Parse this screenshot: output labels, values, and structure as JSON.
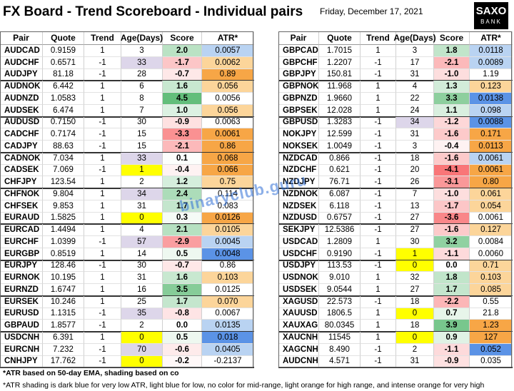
{
  "header": {
    "title": "FX Board - Trend Scoreboard - Individual pairs",
    "date": "Friday, December 17, 2021",
    "logo_top": "SAXO",
    "logo_bottom": "BANK"
  },
  "columns": [
    "Pair",
    "Quote",
    "Trend",
    "Age(Days)",
    "Score",
    "ATR*"
  ],
  "tables": [
    {
      "groups": [
        [
          {
            "pair": "AUDCAD",
            "quote": "0.9159",
            "trend": "1",
            "age": "3",
            "score": "2.0",
            "atr": "0.0057",
            "atr_shade": "light-blue"
          },
          {
            "pair": "AUDCHF",
            "quote": "0.6571",
            "trend": "-1",
            "age": "33",
            "score": "-1.7",
            "atr": "0.0062",
            "atr_shade": "light-orange"
          },
          {
            "pair": "AUDJPY",
            "quote": "81.18",
            "trend": "-1",
            "age": "28",
            "score": "-0.7",
            "atr": "0.89",
            "atr_shade": "orange"
          }
        ],
        [
          {
            "pair": "AUDNOK",
            "quote": "6.442",
            "trend": "1",
            "age": "6",
            "score": "1.6",
            "atr": "0.056",
            "atr_shade": "light-orange"
          },
          {
            "pair": "AUDNZD",
            "quote": "1.0583",
            "trend": "1",
            "age": "8",
            "score": "4.5",
            "atr": "0.0056",
            "atr_shade": "none"
          },
          {
            "pair": "AUDSEK",
            "quote": "6.474",
            "trend": "1",
            "age": "7",
            "score": "1.0",
            "atr": "0.056",
            "atr_shade": "light-orange"
          }
        ],
        [
          {
            "pair": "AUDUSD",
            "quote": "0.7150",
            "trend": "-1",
            "age": "30",
            "score": "-0.9",
            "atr": "0.0063",
            "atr_shade": "none"
          },
          {
            "pair": "CADCHF",
            "quote": "0.7174",
            "trend": "-1",
            "age": "15",
            "score": "-3.3",
            "atr": "0.0061",
            "atr_shade": "orange"
          },
          {
            "pair": "CADJPY",
            "quote": "88.63",
            "trend": "-1",
            "age": "15",
            "score": "-2.1",
            "atr": "0.86",
            "atr_shade": "orange"
          }
        ],
        [
          {
            "pair": "CADNOK",
            "quote": "7.034",
            "trend": "1",
            "age": "33",
            "score": "0.1",
            "atr": "0.068",
            "atr_shade": "orange"
          },
          {
            "pair": "CADSEK",
            "quote": "7.069",
            "trend": "-1",
            "age": "1",
            "score": "-0.4",
            "atr": "0.066",
            "atr_shade": "orange"
          },
          {
            "pair": "CHFJPY",
            "quote": "123.54",
            "trend": "1",
            "age": "2",
            "score": "1.2",
            "atr": "0.75",
            "atr_shade": "light-orange"
          }
        ],
        [
          {
            "pair": "CHFNOK",
            "quote": "9.804",
            "trend": "1",
            "age": "34",
            "score": "2.4",
            "atr": "0.114",
            "atr_shade": "none"
          },
          {
            "pair": "CHFSEK",
            "quote": "9.853",
            "trend": "1",
            "age": "31",
            "score": "1.7",
            "atr": "0.083",
            "atr_shade": "none"
          },
          {
            "pair": "EURAUD",
            "quote": "1.5825",
            "trend": "1",
            "age": "0",
            "score": "0.3",
            "atr": "0.0126",
            "atr_shade": "orange"
          }
        ],
        [
          {
            "pair": "EURCAD",
            "quote": "1.4494",
            "trend": "1",
            "age": "4",
            "score": "2.1",
            "atr": "0.0105",
            "atr_shade": "light-orange"
          },
          {
            "pair": "EURCHF",
            "quote": "1.0399",
            "trend": "-1",
            "age": "57",
            "score": "-2.9",
            "atr": "0.0045",
            "atr_shade": "light-blue"
          },
          {
            "pair": "EURGBP",
            "quote": "0.8519",
            "trend": "1",
            "age": "14",
            "score": "0.5",
            "atr": "0.0048",
            "atr_shade": "dark-blue"
          }
        ],
        [
          {
            "pair": "EURJPY",
            "quote": "128.46",
            "trend": "-1",
            "age": "30",
            "score": "-0.7",
            "atr": "0.86",
            "atr_shade": "none"
          },
          {
            "pair": "EURNOK",
            "quote": "10.195",
            "trend": "1",
            "age": "31",
            "score": "1.6",
            "atr": "0.103",
            "atr_shade": "light-orange"
          },
          {
            "pair": "EURNZD",
            "quote": "1.6747",
            "trend": "1",
            "age": "16",
            "score": "3.5",
            "atr": "0.0125",
            "atr_shade": "none"
          }
        ],
        [
          {
            "pair": "EURSEK",
            "quote": "10.246",
            "trend": "1",
            "age": "25",
            "score": "1.7",
            "atr": "0.070",
            "atr_shade": "light-orange"
          },
          {
            "pair": "EURUSD",
            "quote": "1.1315",
            "trend": "-1",
            "age": "35",
            "score": "-0.8",
            "atr": "0.0067",
            "atr_shade": "none"
          },
          {
            "pair": "GBPAUD",
            "quote": "1.8577",
            "trend": "-1",
            "age": "2",
            "score": "0.0",
            "atr": "0.0135",
            "atr_shade": "light-blue"
          }
        ],
        [
          {
            "pair": "USDCNH",
            "quote": "6.391",
            "trend": "1",
            "age": "0",
            "score": "0.5",
            "atr": "0.018",
            "atr_shade": "dark-blue"
          },
          {
            "pair": "EURCNH",
            "quote": "7.232",
            "trend": "-1",
            "age": "70",
            "score": "-0.6",
            "atr": "0.0405",
            "atr_shade": "light-blue"
          },
          {
            "pair": "CNHJPY",
            "quote": "17.762",
            "trend": "-1",
            "age": "0",
            "score": "-0.2",
            "atr": "-0.2137",
            "atr_shade": "none"
          }
        ]
      ]
    },
    {
      "groups": [
        [
          {
            "pair": "GBPCAD",
            "quote": "1.7015",
            "trend": "1",
            "age": "3",
            "score": "1.8",
            "atr": "0.0118",
            "atr_shade": "light-blue"
          },
          {
            "pair": "GBPCHF",
            "quote": "1.2207",
            "trend": "-1",
            "age": "17",
            "score": "-2.1",
            "atr": "0.0089",
            "atr_shade": "light-blue"
          },
          {
            "pair": "GBPJPY",
            "quote": "150.81",
            "trend": "-1",
            "age": "31",
            "score": "-1.0",
            "atr": "1.19",
            "atr_shade": "none"
          }
        ],
        [
          {
            "pair": "GBPNOK",
            "quote": "11.968",
            "trend": "1",
            "age": "4",
            "score": "1.3",
            "atr": "0.123",
            "atr_shade": "light-orange"
          },
          {
            "pair": "GBPNZD",
            "quote": "1.9660",
            "trend": "1",
            "age": "22",
            "score": "3.3",
            "atr": "0.0138",
            "atr_shade": "dark-blue"
          },
          {
            "pair": "GBPSEK",
            "quote": "12.028",
            "trend": "1",
            "age": "24",
            "score": "1.1",
            "atr": "0.098",
            "atr_shade": "light-blue"
          }
        ],
        [
          {
            "pair": "GBPUSD",
            "quote": "1.3283",
            "trend": "-1",
            "age": "34",
            "score": "-1.2",
            "atr": "0.0088",
            "atr_shade": "dark-blue"
          },
          {
            "pair": "NOKJPY",
            "quote": "12.599",
            "trend": "-1",
            "age": "31",
            "score": "-1.6",
            "atr": "0.171",
            "atr_shade": "orange"
          },
          {
            "pair": "NOKSEK",
            "quote": "1.0049",
            "trend": "-1",
            "age": "3",
            "score": "-0.4",
            "atr": "0.0113",
            "atr_shade": "orange"
          }
        ],
        [
          {
            "pair": "NZDCAD",
            "quote": "0.866",
            "trend": "-1",
            "age": "18",
            "score": "-1.6",
            "atr": "0.0061",
            "atr_shade": "light-blue"
          },
          {
            "pair": "NZDCHF",
            "quote": "0.621",
            "trend": "-1",
            "age": "20",
            "score": "-4.1",
            "atr": "0.0061",
            "atr_shade": "orange"
          },
          {
            "pair": "NZDJPY",
            "quote": "76.71",
            "trend": "-1",
            "age": "26",
            "score": "-3.1",
            "atr": "0.80",
            "atr_shade": "orange"
          }
        ],
        [
          {
            "pair": "NZDNOK",
            "quote": "6.087",
            "trend": "-1",
            "age": "7",
            "score": "-1.0",
            "atr": "0.061",
            "atr_shade": "light-orange"
          },
          {
            "pair": "NZDSEK",
            "quote": "6.118",
            "trend": "-1",
            "age": "13",
            "score": "-1.7",
            "atr": "0.054",
            "atr_shade": "light-orange"
          },
          {
            "pair": "NZDUSD",
            "quote": "0.6757",
            "trend": "-1",
            "age": "27",
            "score": "-3.6",
            "atr": "0.0061",
            "atr_shade": "none"
          }
        ],
        [
          {
            "pair": "SEKJPY",
            "quote": "12.5386",
            "trend": "-1",
            "age": "27",
            "score": "-1.6",
            "atr": "0.127",
            "atr_shade": "light-orange"
          },
          {
            "pair": "USDCAD",
            "quote": "1.2809",
            "trend": "1",
            "age": "30",
            "score": "3.2",
            "atr": "0.0084",
            "atr_shade": "none"
          },
          {
            "pair": "USDCHF",
            "quote": "0.9190",
            "trend": "-1",
            "age": "1",
            "score": "-1.1",
            "atr": "0.0060",
            "atr_shade": "none"
          }
        ],
        [
          {
            "pair": "USDJPY",
            "quote": "113.53",
            "trend": "-1",
            "age": "0",
            "score": "0.0",
            "atr": "0.71",
            "atr_shade": "light-orange"
          },
          {
            "pair": "USDNOK",
            "quote": "9.010",
            "trend": "1",
            "age": "32",
            "score": "1.8",
            "atr": "0.103",
            "atr_shade": "light-orange"
          },
          {
            "pair": "USDSEK",
            "quote": "9.0544",
            "trend": "1",
            "age": "27",
            "score": "1.7",
            "atr": "0.085",
            "atr_shade": "light-orange"
          }
        ],
        [
          {
            "pair": "XAGUSD",
            "quote": "22.573",
            "trend": "-1",
            "age": "18",
            "score": "-2.2",
            "atr": "0.55",
            "atr_shade": "none"
          },
          {
            "pair": "XAUUSD",
            "quote": "1806.5",
            "trend": "1",
            "age": "0",
            "score": "0.7",
            "atr": "21.8",
            "atr_shade": "none"
          },
          {
            "pair": "XAUXAG",
            "quote": "80.0345",
            "trend": "1",
            "age": "18",
            "score": "3.9",
            "atr": "1.23",
            "atr_shade": "orange"
          }
        ],
        [
          {
            "pair": "XAUCNH",
            "quote": "11545",
            "trend": "1",
            "age": "0",
            "score": "0.9",
            "atr": "127",
            "atr_shade": "orange"
          },
          {
            "pair": "XAGCNH",
            "quote": "8.490",
            "trend": "-1",
            "age": "2",
            "score": "-1.1",
            "atr": "0.052",
            "atr_shade": "dark-blue"
          },
          {
            "pair": "AUDCNH",
            "quote": "4.571",
            "trend": "-1",
            "age": "31",
            "score": "-0.9",
            "atr": "0.035",
            "atr_shade": "none"
          }
        ]
      ]
    }
  ],
  "watermark": "binaryclub.guru",
  "footnotes": [
    "*ATR based on 50-day EMA, shading based on co",
    "*ATR shading is dark blue for very low ATR, light blue for low, no color for mid-range, light orange for high range, and intense orange for very high"
  ]
}
